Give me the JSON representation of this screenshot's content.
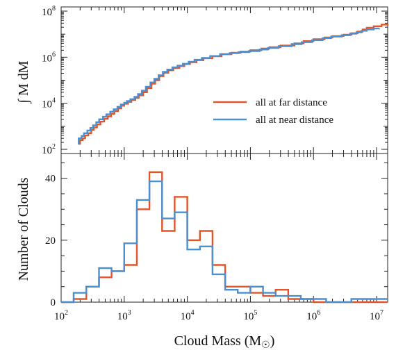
{
  "colors": {
    "far": "#e0552b",
    "near": "#4a8fd0",
    "axis": "#222222"
  },
  "chart_data": [
    {
      "type": "line",
      "title": "",
      "ylabel": "∫ M dM",
      "xlabel": "",
      "xscale": "log",
      "yscale": "log",
      "xlim": [
        100,
        15000000
      ],
      "ylim": [
        100,
        100000000
      ],
      "yticks": [
        {
          "base": "10",
          "exp": "2",
          "value": 100
        },
        {
          "base": "10",
          "exp": "4",
          "value": 10000
        },
        {
          "base": "10",
          "exp": "6",
          "value": 1000000
        },
        {
          "base": "10",
          "exp": "8",
          "value": 100000000
        }
      ],
      "legend": {
        "position": "right",
        "entries": [
          "all at far distance",
          "all at near distance"
        ]
      },
      "series": [
        {
          "name": "all at far distance",
          "color_key": "far",
          "x": [
            200,
            220,
            240,
            270,
            300,
            330,
            370,
            420,
            480,
            550,
            620,
            700,
            800,
            900,
            1000,
            1150,
            1300,
            1500,
            1700,
            2000,
            2300,
            2700,
            3100,
            3600,
            4200,
            5000,
            6000,
            7500,
            9000,
            11000,
            14000,
            18000,
            25000,
            35000,
            50000,
            70000,
            100000,
            150000,
            200000,
            300000,
            500000,
            700000,
            1000000,
            1500000,
            2000000,
            3000000,
            4000000,
            5000000,
            6000000,
            7000000,
            9000000,
            12000000,
            15000000
          ],
          "y": [
            250,
            300,
            400,
            500,
            700,
            900,
            1200,
            1600,
            2100,
            2700,
            3500,
            4600,
            6000,
            7800,
            9500,
            11500,
            14000,
            17000,
            22000,
            30000,
            45000,
            70000,
            100000,
            150000,
            210000,
            270000,
            340000,
            410000,
            500000,
            600000,
            740000,
            900000,
            1100000,
            1350000,
            1550000,
            1750000,
            2000000,
            2350000,
            2700000,
            3200000,
            4000000,
            5000000,
            6000000,
            7200000,
            8300000,
            9500000,
            11000000,
            13000000,
            16000000,
            19000000,
            22000000,
            26000000,
            28000000
          ]
        },
        {
          "name": "all at near distance",
          "color_key": "near",
          "x": [
            190,
            210,
            230,
            260,
            290,
            320,
            360,
            400,
            460,
            520,
            600,
            680,
            780,
            880,
            1000,
            1100,
            1250,
            1450,
            1650,
            1900,
            2200,
            2600,
            3000,
            3500,
            4100,
            4800,
            5800,
            7000,
            8500,
            10500,
            13000,
            17000,
            23000,
            33000,
            47000,
            65000,
            95000,
            140000,
            190000,
            280000,
            450000,
            650000,
            950000,
            1400000,
            1900000,
            2800000,
            3800000,
            4800000,
            5800000,
            7000000,
            9000000,
            11000000
          ],
          "y": [
            300,
            380,
            500,
            650,
            850,
            1100,
            1500,
            2000,
            2600,
            3300,
            4300,
            5500,
            7000,
            8800,
            10500,
            12500,
            15000,
            19000,
            25000,
            35000,
            52000,
            80000,
            115000,
            165000,
            230000,
            290000,
            360000,
            430000,
            520000,
            630000,
            770000,
            920000,
            1120000,
            1350000,
            1500000,
            1650000,
            1850000,
            2150000,
            2500000,
            3000000,
            3700000,
            4500000,
            5500000,
            6700000,
            7800000,
            9000000,
            10500000,
            12000000,
            14000000,
            16000000,
            17500000,
            18000000
          ]
        }
      ]
    },
    {
      "type": "bar",
      "title": "",
      "ylabel": "Number of Clouds",
      "xlabel": "Cloud Mass  (M☉)",
      "xlabel_parts": {
        "text": "Cloud Mass  (M",
        "sub": "☉",
        "close": ")"
      },
      "xscale": "log",
      "xlim": [
        100,
        15000000
      ],
      "ylim": [
        0,
        48
      ],
      "yticks": [
        0,
        20,
        40
      ],
      "xticks": [
        {
          "base": "10",
          "exp": "2",
          "value": 100
        },
        {
          "base": "10",
          "exp": "3",
          "value": 1000
        },
        {
          "base": "10",
          "exp": "4",
          "value": 10000
        },
        {
          "base": "10",
          "exp": "5",
          "value": 100000
        },
        {
          "base": "10",
          "exp": "6",
          "value": 1000000
        },
        {
          "base": "10",
          "exp": "7",
          "value": 10000000
        }
      ],
      "bin_edges": [
        100,
        158,
        251,
        398,
        631,
        1000,
        1585,
        2512,
        3981,
        6310,
        10000,
        15849,
        25119,
        39811,
        63096,
        100000,
        158489,
        251189,
        398107,
        630957,
        1000000,
        1584893,
        2511886,
        3981072,
        6309573,
        10000000,
        15848932
      ],
      "series": [
        {
          "name": "all at far distance",
          "color_key": "far",
          "values": [
            0,
            1,
            5,
            8,
            10,
            12,
            30,
            42,
            23,
            34,
            20,
            23,
            12,
            5,
            5,
            3,
            2,
            4,
            1,
            1,
            0,
            0,
            0,
            0,
            0,
            0
          ]
        },
        {
          "name": "all at near distance",
          "color_key": "near",
          "values": [
            0,
            3,
            5,
            11,
            10,
            19,
            33,
            39,
            27,
            29,
            17,
            18,
            9,
            4,
            3,
            5,
            3,
            2,
            2,
            1,
            1,
            0,
            0,
            1,
            1,
            1
          ]
        }
      ]
    }
  ]
}
